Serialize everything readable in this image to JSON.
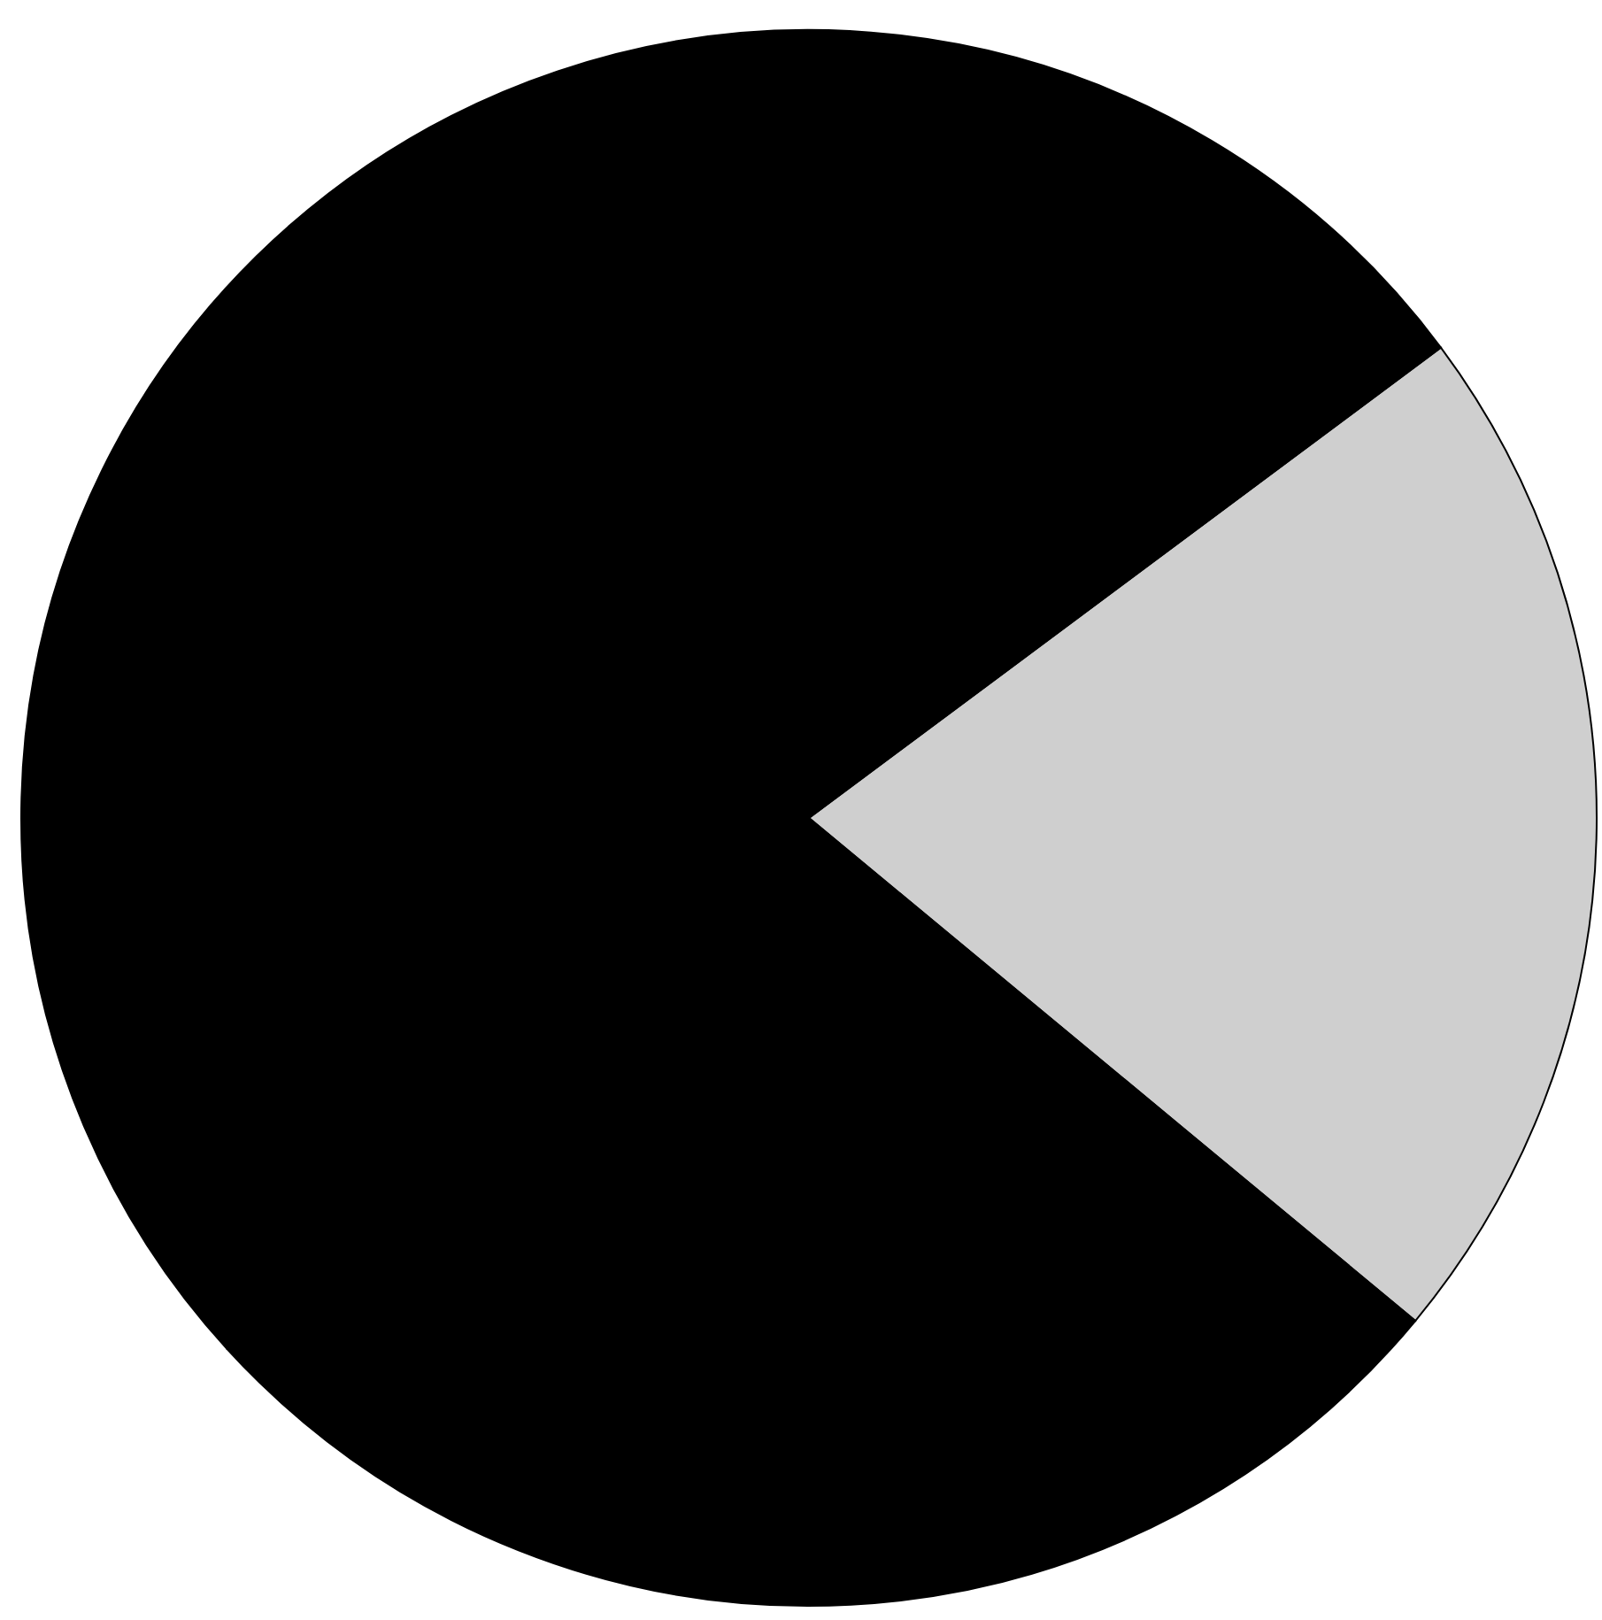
{
  "chart_data": {
    "type": "pie",
    "categories": [
      null,
      null
    ],
    "values": [
      21.2,
      78.8
    ],
    "colors": [
      "#cfcfcf",
      "#000000"
    ]
  }
}
